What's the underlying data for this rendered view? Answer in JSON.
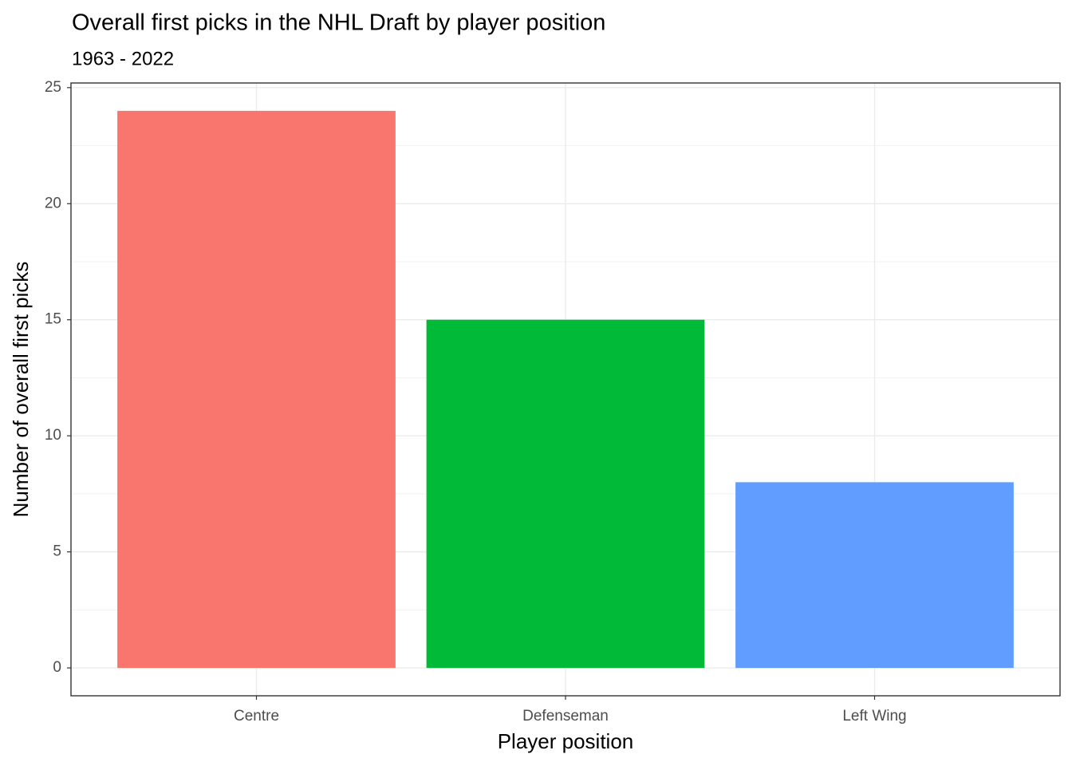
{
  "chart_data": {
    "type": "bar",
    "title": "Overall first picks in the NHL Draft by player position",
    "subtitle": "1963 - 2022",
    "x_label": "Player position",
    "y_label": "Number of overall first picks",
    "categories": [
      "Centre",
      "Defenseman",
      "Left Wing"
    ],
    "values": [
      24,
      15,
      8
    ],
    "colors": [
      "#F8766D",
      "#00BA38",
      "#619CFF"
    ],
    "ylim": [
      -1.2,
      25.2
    ],
    "yticks": [
      0,
      5,
      10,
      15,
      20,
      25
    ],
    "grid": true
  }
}
